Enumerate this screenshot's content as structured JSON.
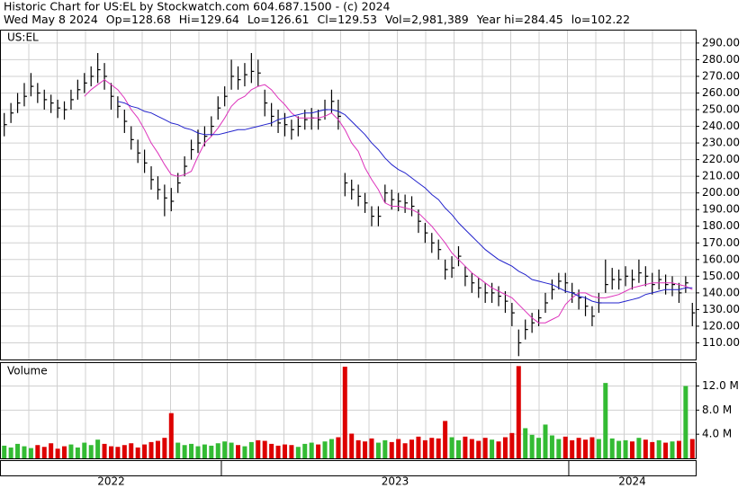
{
  "chart_data": {
    "type": "ohlc",
    "title": "Historic Chart for US:EL by Stockwatch.com 604.687.1500 - (c) 2024",
    "quote": [
      "Wed May  8 2024",
      "Op=128.68",
      "Hi=129.64",
      "Lo=126.61",
      "Cl=129.53",
      "Vol=2,981,389",
      "Year hi=284.45",
      "lo=102.22"
    ],
    "symbol": "US:EL",
    "volume_title": "Volume",
    "years": [
      "2022",
      "2023",
      "2024"
    ],
    "year_starts": [
      33,
      85
    ],
    "xlim": [
      0,
      104
    ],
    "ylim": [
      100,
      297.5
    ],
    "yticks": [
      {
        "value": 110,
        "label": "110.00"
      },
      {
        "value": 120,
        "label": "120.00"
      },
      {
        "value": 130,
        "label": "130.00"
      },
      {
        "value": 140,
        "label": "140.00"
      },
      {
        "value": 150,
        "label": "150.00"
      },
      {
        "value": 160,
        "label": "160.00"
      },
      {
        "value": 170,
        "label": "170.00"
      },
      {
        "value": 180,
        "label": "180.00"
      },
      {
        "value": 190,
        "label": "190.00"
      },
      {
        "value": 200,
        "label": "200.00"
      },
      {
        "value": 210,
        "label": "210.00"
      },
      {
        "value": 220,
        "label": "220.00"
      },
      {
        "value": 230,
        "label": "230.00"
      },
      {
        "value": 240,
        "label": "240.00"
      },
      {
        "value": 250,
        "label": "250.00"
      },
      {
        "value": 260,
        "label": "260.00"
      },
      {
        "value": 270,
        "label": "270.00"
      },
      {
        "value": 280,
        "label": "280.00"
      },
      {
        "value": 290,
        "label": "290.00"
      }
    ],
    "vlim": [
      0,
      15.8
    ],
    "vticks": [
      {
        "value": 4,
        "label": "4.0 M"
      },
      {
        "value": 8,
        "label": "8.0 M"
      },
      {
        "value": 12,
        "label": "12.0 M"
      }
    ],
    "grid": true,
    "bar_color": "#000000",
    "up_color": "#33bb33",
    "down_color": "#dd0000",
    "high": [
      248,
      254,
      260,
      266,
      272,
      266,
      262,
      259,
      256,
      255,
      262,
      268,
      272,
      276,
      284,
      278,
      266,
      258,
      250,
      240,
      232,
      226,
      216,
      210,
      205,
      203,
      212,
      222,
      232,
      238,
      240,
      246,
      258,
      264,
      280,
      276,
      278,
      284,
      280,
      262,
      254,
      250,
      248,
      244,
      246,
      250,
      251,
      250,
      256,
      262,
      256,
      212,
      208,
      205,
      200,
      192,
      192,
      205,
      202,
      200,
      199,
      198,
      190,
      182,
      176,
      172,
      160,
      162,
      168,
      156,
      152,
      149,
      146,
      146,
      144,
      141,
      134,
      118,
      124,
      128,
      130,
      140,
      148,
      152,
      152,
      146,
      142,
      138,
      132,
      140,
      160,
      155,
      154,
      156,
      154,
      160,
      156,
      152,
      154,
      151,
      150,
      146,
      150,
      134
    ],
    "low": [
      234,
      242,
      248,
      252,
      258,
      254,
      250,
      248,
      245,
      244,
      250,
      256,
      260,
      264,
      266,
      262,
      250,
      245,
      236,
      226,
      218,
      212,
      202,
      196,
      186,
      189,
      200,
      210,
      220,
      224,
      228,
      234,
      244,
      252,
      262,
      262,
      264,
      266,
      264,
      246,
      240,
      236,
      234,
      232,
      234,
      238,
      238,
      238,
      244,
      248,
      238,
      198,
      196,
      192,
      188,
      180,
      180,
      194,
      190,
      189,
      188,
      186,
      176,
      170,
      164,
      160,
      148,
      149,
      156,
      144,
      140,
      137,
      134,
      134,
      132,
      128,
      120,
      102,
      112,
      116,
      120,
      128,
      136,
      142,
      140,
      134,
      130,
      126,
      120,
      128,
      140,
      142,
      142,
      144,
      142,
      146,
      144,
      139,
      142,
      139,
      138,
      134,
      140,
      120
    ],
    "close": [
      241,
      248,
      254,
      258,
      264,
      260,
      256,
      254,
      251,
      250,
      256,
      262,
      266,
      270,
      274,
      270,
      258,
      252,
      243,
      232,
      224,
      218,
      208,
      202,
      197,
      195,
      206,
      216,
      226,
      230,
      234,
      240,
      251,
      258,
      270,
      268,
      271,
      273,
      272,
      254,
      246,
      242,
      241,
      238,
      240,
      244,
      245,
      244,
      250,
      255,
      246,
      206,
      202,
      198,
      194,
      186,
      186,
      200,
      196,
      195,
      194,
      192,
      183,
      176,
      170,
      166,
      154,
      155,
      162,
      150,
      146,
      143,
      140,
      140,
      138,
      135,
      128,
      110,
      118,
      122,
      125,
      134,
      142,
      147,
      146,
      140,
      137,
      132,
      126,
      134,
      145,
      148,
      148,
      150,
      148,
      152,
      150,
      145,
      148,
      145,
      145,
      140,
      146,
      128
    ],
    "volume": [
      2.1,
      1.8,
      2.4,
      2.0,
      1.7,
      2.2,
      1.9,
      2.5,
      1.6,
      2.0,
      2.3,
      1.8,
      2.6,
      2.2,
      3.1,
      2.4,
      2.0,
      1.9,
      2.2,
      2.5,
      1.8,
      2.3,
      2.7,
      2.9,
      3.4,
      7.5,
      2.6,
      2.2,
      2.4,
      2.0,
      2.3,
      2.1,
      2.5,
      2.8,
      2.6,
      2.2,
      2.0,
      2.7,
      3.0,
      2.9,
      2.4,
      2.1,
      2.3,
      2.2,
      1.9,
      2.4,
      2.6,
      2.3,
      2.8,
      3.2,
      3.5,
      15.2,
      4.1,
      3.0,
      2.8,
      3.3,
      2.6,
      3.0,
      2.7,
      3.2,
      2.5,
      3.1,
      3.6,
      3.0,
      3.4,
      3.3,
      6.2,
      3.5,
      3.0,
      3.6,
      3.2,
      2.9,
      3.4,
      3.1,
      2.8,
      3.5,
      4.2,
      15.3,
      5.0,
      3.9,
      3.4,
      5.6,
      3.8,
      3.2,
      3.6,
      3.0,
      3.4,
      3.1,
      3.5,
      3.2,
      12.5,
      3.3,
      2.9,
      3.0,
      2.8,
      3.4,
      3.1,
      2.7,
      3.0,
      2.6,
      2.8,
      2.9,
      12.0,
      3.2
    ],
    "ma_short": {
      "color": "#dd33bb",
      "values": [
        null,
        null,
        null,
        null,
        null,
        null,
        null,
        null,
        null,
        null,
        null,
        null,
        258,
        262,
        265,
        268,
        265,
        262,
        257,
        250,
        245,
        238,
        230,
        224,
        217,
        211,
        210,
        211,
        213,
        222,
        230,
        234,
        239,
        245,
        252,
        256,
        258,
        262,
        264,
        265,
        262,
        257,
        253,
        248,
        245,
        245,
        245,
        245,
        246,
        248,
        244,
        238,
        230,
        225,
        215,
        208,
        202,
        194,
        192,
        192,
        191,
        190,
        188,
        184,
        180,
        175,
        170,
        164,
        160,
        156,
        152,
        149,
        146,
        143,
        141,
        139,
        137,
        133,
        129,
        125,
        122,
        122,
        124,
        126,
        133,
        137,
        140,
        140,
        138,
        137,
        137,
        138,
        139,
        141,
        143,
        144,
        145,
        146,
        146,
        146,
        146,
        145,
        144,
        142
      ]
    },
    "ma_long": {
      "color": "#2222cc",
      "values": [
        null,
        null,
        null,
        null,
        null,
        null,
        null,
        null,
        null,
        null,
        null,
        null,
        null,
        null,
        null,
        null,
        null,
        255,
        254,
        252,
        251,
        249,
        248,
        246,
        244,
        242,
        241,
        239,
        238,
        236,
        235,
        235,
        235,
        236,
        237,
        238,
        238,
        239,
        240,
        241,
        242,
        244,
        245,
        246,
        247,
        248,
        248,
        249,
        250,
        250,
        249,
        247,
        243,
        239,
        235,
        230,
        226,
        221,
        217,
        214,
        212,
        209,
        206,
        203,
        199,
        196,
        191,
        187,
        182,
        178,
        174,
        170,
        166,
        163,
        160,
        158,
        156,
        153,
        151,
        148,
        147,
        146,
        145,
        143,
        141,
        140,
        138,
        137,
        135,
        134,
        134,
        134,
        134,
        135,
        136,
        137,
        139,
        140,
        141,
        142,
        142,
        142,
        143,
        143
      ]
    }
  }
}
